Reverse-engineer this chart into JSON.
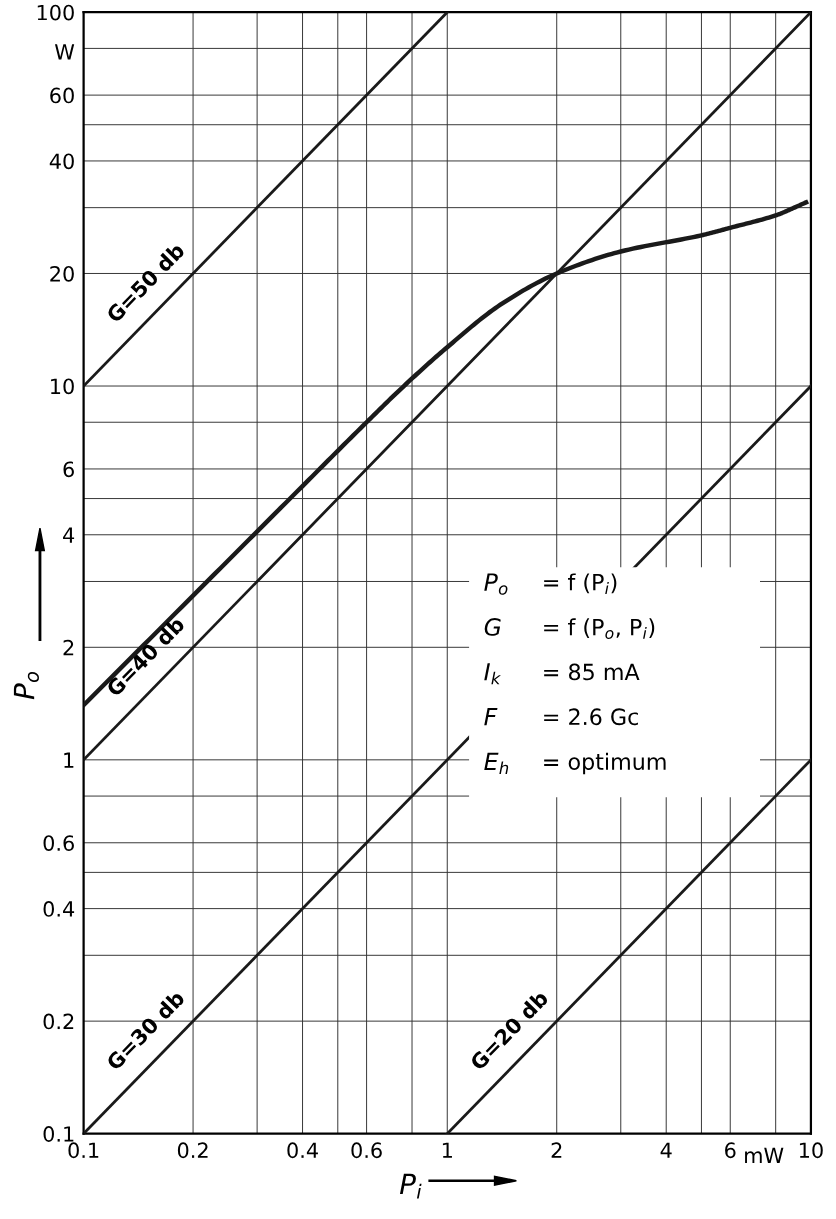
{
  "chart_data": {
    "type": "line",
    "xlabel": "P$_{i}$",
    "ylabel": "P$_{o}$",
    "log": "xy",
    "grid": true,
    "xlim": [
      0.1,
      10
    ],
    "ylim": [
      0.1,
      100
    ],
    "xticks": [
      0.1,
      0.2,
      {
        "value": 0.3,
        "label": null
      },
      0.4,
      {
        "value": 0.5,
        "label": null
      },
      0.6,
      {
        "value": 0.8,
        "label": null
      },
      1,
      2,
      {
        "value": 3,
        "label": null
      },
      4,
      {
        "value": 5,
        "label": null
      },
      6,
      {
        "value": 8,
        "label": null
      },
      10
    ],
    "yticks": [
      0.1,
      0.2,
      {
        "value": 0.3,
        "label": null
      },
      0.4,
      {
        "value": 0.5,
        "label": null
      },
      0.6,
      {
        "value": 0.8,
        "label": null
      },
      1,
      2,
      {
        "value": 3,
        "label": null
      },
      4,
      {
        "value": 5,
        "label": null
      },
      6,
      {
        "value": 8,
        "label": null
      },
      10,
      20,
      {
        "value": 30,
        "label": null
      },
      40,
      {
        "value": 50,
        "label": null
      },
      60,
      {
        "value": 80,
        "label": null
      },
      100
    ],
    "series": [
      {
        "color": "#1a1a1a",
        "x": [
          0.1,
          0.2,
          0.4,
          0.6,
          0.76,
          1,
          1.4,
          2,
          3,
          5,
          6,
          8,
          9,
          9.7
        ],
        "values": [
          1.4,
          2.75,
          5.4,
          8,
          10,
          12.7,
          16.5,
          20,
          22.9,
          25.3,
          26.5,
          28.6,
          30,
          31
        ]
      },
      {
        "name": "G=50 db",
        "color": "#1a1a1a",
        "x": [
          0.1,
          1
        ],
        "values": [
          10,
          100
        ]
      },
      {
        "name": "G=40 db",
        "color": "#1a1a1a",
        "x": [
          0.1,
          10
        ],
        "values": [
          1,
          100
        ]
      },
      {
        "name": "G=30 db",
        "color": "#1a1a1a",
        "x": [
          0.1,
          10
        ],
        "values": [
          0.1,
          10
        ]
      },
      {
        "name": "G=20 db",
        "color": "#1a1a1a",
        "x": [
          1,
          10
        ],
        "values": [
          0.1,
          1
        ]
      }
    ],
    "annotations": [
      "W",
      "mW",
      "P$_{o}$",
      "= f (P$_{i}$)",
      "G",
      "= f (P$_{o}$, P$_{i}$)",
      "I$_{k}$",
      "= 85 mA",
      "F",
      "= 2.6 Gc",
      "E$_{h}$",
      "= optimum"
    ]
  }
}
